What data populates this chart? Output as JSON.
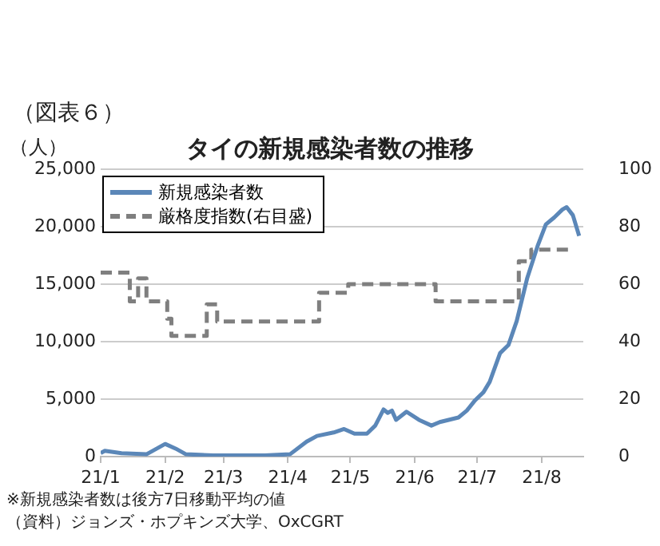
{
  "chart_data": {
    "type": "line",
    "title": "タイの新規感染者数の推移",
    "subtitle": "（図表６）",
    "ylabel": "（人）",
    "xlim": [
      "--01-01",
      "--08-21"
    ],
    "xticks": [
      {
        "value": "--01-01",
        "label": "21/1"
      },
      {
        "value": "--02-01",
        "label": "21/2"
      },
      {
        "value": "--03-01",
        "label": "21/3"
      },
      {
        "value": "--04-01",
        "label": "21/4"
      },
      {
        "value": "--05-01",
        "label": "21/5"
      },
      {
        "value": "--06-01",
        "label": "21/6"
      },
      {
        "value": "--07-01",
        "label": "21/7"
      },
      {
        "value": "--08-01",
        "label": "21/8"
      }
    ],
    "ylim": [
      0,
      25000
    ],
    "yticks": [
      {
        "value": 0,
        "label": "0"
      },
      {
        "value": 5000,
        "label": "5,000"
      },
      {
        "value": 10000,
        "label": "10,000"
      },
      {
        "value": 15000,
        "label": "15,000"
      },
      {
        "value": 20000,
        "label": "20,000"
      },
      {
        "value": 25000,
        "label": "25,000"
      }
    ],
    "y2lim": [
      0,
      100
    ],
    "y2ticks": [
      0,
      20,
      40,
      60,
      80,
      100
    ],
    "grid": "y",
    "legend": "top left",
    "series": [
      {
        "name": "新規感染者数",
        "color": "#5b87b8",
        "line_style": "solid",
        "x": [
          "--01-01",
          "--01-03",
          "--01-11",
          "--01-23",
          "--02-01",
          "--02-06",
          "--02-11",
          "--02-24",
          "--03-21",
          "--04-02",
          "--04-10",
          "--04-15",
          "--04-23",
          "--04-28",
          "--05-03",
          "--05-09",
          "--05-13",
          "--05-17",
          "--05-19",
          "--05-21",
          "--05-23",
          "--05-28",
          "--06-03",
          "--06-09",
          "--06-13",
          "--06-22",
          "--06-26",
          "--06-30",
          "--07-04",
          "--07-07",
          "--07-12",
          "--07-16",
          "--07-20",
          "--07-25",
          "--07-30",
          "--08-03",
          "--08-07",
          "--08-11",
          "--08-13",
          "--08-16",
          "--08-19"
        ],
        "values": [
          300,
          500,
          300,
          200,
          1100,
          700,
          200,
          100,
          100,
          200,
          1300,
          1800,
          2100,
          2400,
          2000,
          2000,
          2700,
          4100,
          3800,
          4000,
          3200,
          3900,
          3200,
          2700,
          3000,
          3400,
          4000,
          4900,
          5600,
          6500,
          9000,
          9700,
          11800,
          15500,
          18300,
          20200,
          20800,
          21500,
          21700,
          21000,
          19200
        ]
      },
      {
        "name": "厳格度指数(右目盛)",
        "type": "step",
        "axis": "y2",
        "color": "#7f7f7f",
        "line_style": "dashed",
        "x": [
          "--01-01",
          "--01-14",
          "--01-15",
          "--01-19",
          "--01-23",
          "--02-02",
          "--02-04",
          "--02-21",
          "--02-26",
          "--04-16",
          "--04-30",
          "--06-11",
          "--07-21",
          "--07-27",
          "--08-14"
        ],
        "values": [
          64,
          64,
          54,
          62,
          54,
          48,
          42,
          53,
          47,
          57,
          60,
          54,
          68,
          72,
          72
        ]
      }
    ],
    "annotations": [
      "※新規感染者数は後方7日移動平均の値",
      "（資料）ジョンズ・ホプキンズ大学、OxCGRT"
    ]
  }
}
